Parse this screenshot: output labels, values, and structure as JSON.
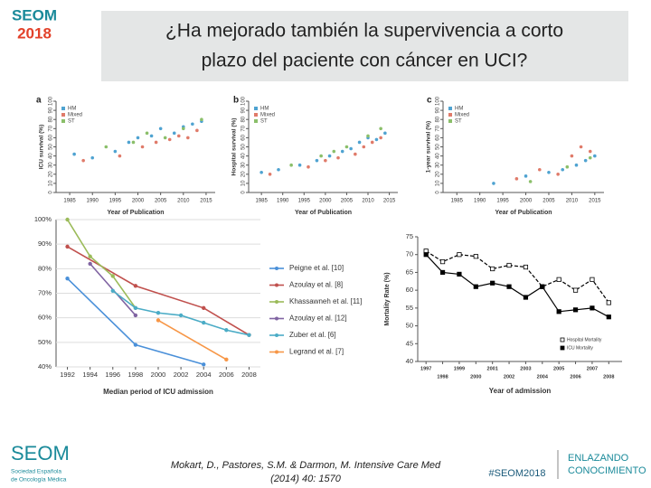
{
  "header": {
    "logo_top": "SEOM",
    "logo_bottom": "2018",
    "title_lines": [
      "¿Ha mejorado también la supervivencia a corto",
      "plazo del paciente con cáncer en UCI?"
    ]
  },
  "footer": {
    "logo": "SEOM",
    "logo_sub_lines": [
      "Sociedad Española",
      "de Oncología Médica"
    ],
    "citation_lines": [
      "Mokart, D., Pastores, S.M. & Darmon, M. Intensive Care Med",
      "(2014) 40: 1570"
    ],
    "hashtag": "#SEOM2018",
    "slogan_lines": [
      "ENLAZANDO",
      "CONOCIMIENTO"
    ]
  },
  "chart_data": [
    {
      "type": "scatter",
      "label": "a",
      "x_label": "Year of Publication",
      "y_label": "ICU survival (%)",
      "xlim": [
        1982,
        2017
      ],
      "xticks": [
        1985,
        1990,
        1995,
        2000,
        2005,
        2010,
        2015
      ],
      "ylim": [
        0,
        100
      ],
      "yticks": [
        0,
        10,
        20,
        30,
        40,
        50,
        60,
        70,
        80,
        90,
        100
      ],
      "series": [
        {
          "name": "HM",
          "color": "#4fa3d1",
          "x": [
            1986,
            1990,
            1995,
            1998,
            2000,
            2003,
            2005,
            2008,
            2010,
            2012,
            2014
          ],
          "values": [
            42,
            38,
            45,
            55,
            60,
            62,
            70,
            65,
            72,
            75,
            78
          ]
        },
        {
          "name": "Mixed",
          "color": "#e07b6a",
          "x": [
            1988,
            1996,
            2001,
            2004,
            2007,
            2009,
            2011,
            2013
          ],
          "values": [
            35,
            40,
            50,
            55,
            58,
            62,
            60,
            68
          ]
        },
        {
          "name": "ST",
          "color": "#8bbf6a",
          "x": [
            1993,
            1999,
            2002,
            2006,
            2010,
            2014
          ],
          "values": [
            50,
            55,
            65,
            60,
            70,
            80
          ]
        }
      ]
    },
    {
      "type": "scatter",
      "label": "b",
      "x_label": "Year of Publication",
      "y_label": "Hospital survival (%)",
      "xlim": [
        1982,
        2017
      ],
      "xticks": [
        1985,
        1990,
        1995,
        2000,
        2005,
        2010,
        2015
      ],
      "ylim": [
        0,
        100
      ],
      "yticks": [
        0,
        10,
        20,
        30,
        40,
        50,
        60,
        70,
        80,
        90,
        100
      ],
      "series": [
        {
          "name": "HM",
          "color": "#4fa3d1",
          "x": [
            1985,
            1989,
            1994,
            1998,
            2001,
            2004,
            2006,
            2008,
            2010,
            2012,
            2014
          ],
          "values": [
            22,
            25,
            30,
            35,
            40,
            45,
            48,
            55,
            60,
            58,
            65
          ]
        },
        {
          "name": "Mixed",
          "color": "#e07b6a",
          "x": [
            1987,
            1996,
            2000,
            2003,
            2007,
            2009,
            2011,
            2013
          ],
          "values": [
            20,
            28,
            35,
            38,
            42,
            50,
            55,
            60
          ]
        },
        {
          "name": "ST",
          "color": "#8bbf6a",
          "x": [
            1992,
            1999,
            2002,
            2005,
            2010,
            2013
          ],
          "values": [
            30,
            40,
            45,
            50,
            62,
            70
          ]
        }
      ]
    },
    {
      "type": "scatter",
      "label": "c",
      "x_label": "Year of Publication",
      "y_label": "1-year survival (%)",
      "xlim": [
        1982,
        2017
      ],
      "xticks": [
        1985,
        1990,
        1995,
        2000,
        2005,
        2010,
        2015
      ],
      "ylim": [
        0,
        100
      ],
      "yticks": [
        0,
        10,
        20,
        30,
        40,
        50,
        60,
        70,
        80,
        90,
        100
      ],
      "series": [
        {
          "name": "HM",
          "color": "#4fa3d1",
          "x": [
            1993,
            2000,
            2005,
            2008,
            2011,
            2013,
            2015
          ],
          "values": [
            10,
            18,
            22,
            25,
            30,
            35,
            40
          ]
        },
        {
          "name": "Mixed",
          "color": "#e07b6a",
          "x": [
            1998,
            2003,
            2007,
            2010,
            2012,
            2014
          ],
          "values": [
            15,
            25,
            20,
            40,
            50,
            45
          ]
        },
        {
          "name": "ST",
          "color": "#8bbf6a",
          "x": [
            2001,
            2009,
            2014
          ],
          "values": [
            12,
            28,
            38
          ]
        }
      ]
    },
    {
      "type": "line",
      "x_label": "Median period of ICU admission",
      "grid": true,
      "xlim": [
        1991,
        2009
      ],
      "xticks": [
        1992,
        1994,
        1996,
        1998,
        2000,
        2002,
        2004,
        2006,
        2008
      ],
      "ylim": [
        40,
        100
      ],
      "yticks": [
        {
          "value": 40,
          "label": "40%"
        },
        {
          "value": 50,
          "label": "50%"
        },
        {
          "value": 60,
          "label": "60%"
        },
        {
          "value": 70,
          "label": "70%"
        },
        {
          "value": 80,
          "label": "80%"
        },
        {
          "value": 90,
          "label": "90%"
        },
        {
          "value": 100,
          "label": "100%"
        }
      ],
      "series": [
        {
          "name": "Peigne et al. [10]",
          "color": "#4a90d9",
          "x": [
            1992,
            1998,
            2004
          ],
          "values": [
            76,
            49,
            41
          ]
        },
        {
          "name": "Azoulay et al. [8]",
          "color": "#c0504d",
          "x": [
            1992,
            1998,
            2004,
            2008
          ],
          "values": [
            89,
            73,
            64,
            53
          ]
        },
        {
          "name": "Khassawneh et al. [11]",
          "color": "#9bbb59",
          "x": [
            1992,
            1994,
            1996,
            1998
          ],
          "values": [
            100,
            85,
            77,
            64
          ]
        },
        {
          "name": "Azoulay et al. [12]",
          "color": "#8064a2",
          "x": [
            1994,
            1998
          ],
          "values": [
            82,
            61
          ]
        },
        {
          "name": "Zuber et al. [6]",
          "color": "#4bacc6",
          "x": [
            1996,
            1998,
            2000,
            2002,
            2004,
            2006,
            2008
          ],
          "values": [
            71,
            64,
            62,
            61,
            58,
            55,
            53
          ]
        },
        {
          "name": "Legrand et al. [7]",
          "color": "#f79646",
          "x": [
            2000,
            2006
          ],
          "values": [
            59,
            43
          ]
        }
      ]
    },
    {
      "type": "line",
      "x_label": "Year of admission",
      "y_label": "Mortality Rate (%)",
      "x": [
        1997,
        1998,
        1999,
        2000,
        2001,
        2002,
        2003,
        2004,
        2005,
        2006,
        2007,
        2008
      ],
      "xlim": [
        1996.5,
        2008.8
      ],
      "xticks": [
        1997,
        1998,
        1999,
        2000,
        2001,
        2002,
        2003,
        2004,
        2005,
        2006,
        2007,
        2008
      ],
      "ylim": [
        40,
        75
      ],
      "yticks": [
        40,
        45,
        50,
        55,
        60,
        65,
        70,
        75
      ],
      "series": [
        {
          "name": "Hospital Mortality",
          "color": "#000000",
          "line_style": "dashed",
          "marker": "open-square",
          "values": [
            71,
            68,
            70,
            69.5,
            66,
            67,
            66.5,
            61,
            63,
            60,
            63,
            56.5
          ]
        },
        {
          "name": "ICU Mortality",
          "color": "#000000",
          "line_style": "solid",
          "marker": "filled-square",
          "values": [
            70,
            65,
            64.5,
            61,
            62,
            61,
            58,
            61,
            54,
            54.5,
            55,
            52.5
          ]
        }
      ]
    }
  ]
}
